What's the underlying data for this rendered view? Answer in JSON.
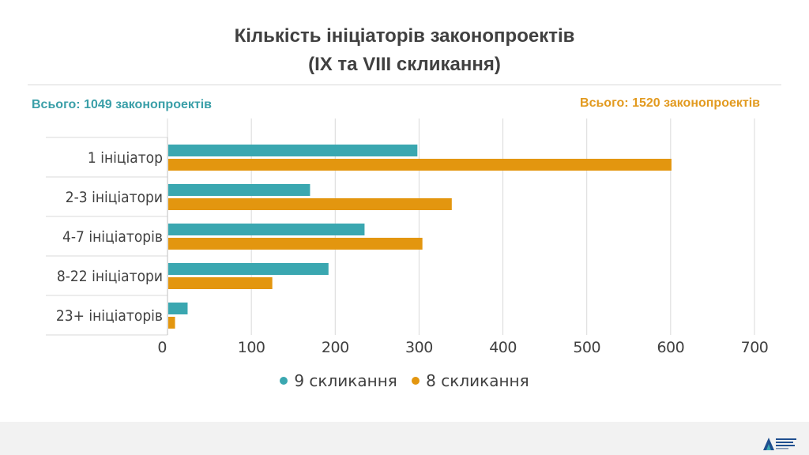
{
  "title_line1": "Кількість ініціаторів законопроектів",
  "title_line2": "(IX та VIII скликання)",
  "total_left": "Всього: 1049 законопроектів",
  "total_right": "Всього: 1520 законопроектів",
  "colors": {
    "series1": "#3aa7b0",
    "series2": "#e3960f",
    "grid": "#d9d9d9",
    "text": "#404040"
  },
  "legend": [
    {
      "label": "9 скликання",
      "color": "#3aa7b0"
    },
    {
      "label": "8 скликання",
      "color": "#e3960f"
    }
  ],
  "logo_icon": "organization-logo-icon",
  "chart_data": {
    "type": "bar",
    "orientation": "horizontal",
    "title": "Кількість ініціаторів законопроектів (IX та VIII скликання)",
    "categories": [
      "1 ініціатор",
      "2-3 ініціатори",
      "4-7 ініціаторів",
      "8-22 ініціатори",
      "23+ ініціаторів"
    ],
    "series": [
      {
        "name": "9 скликання",
        "values": [
          298,
          170,
          235,
          192,
          24
        ]
      },
      {
        "name": "8 скликання",
        "values": [
          601,
          339,
          304,
          125,
          9
        ]
      }
    ],
    "xlim": [
      0,
      700
    ],
    "xticks": [
      "0",
      "100",
      "200",
      "300",
      "400",
      "500",
      "600",
      "700"
    ],
    "grid": true,
    "legend_position": "bottom"
  }
}
